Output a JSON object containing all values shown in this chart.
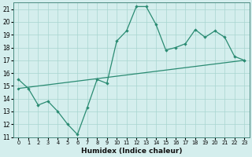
{
  "xlabel": "Humidex (Indice chaleur)",
  "xlim": [
    -0.5,
    23.5
  ],
  "ylim": [
    11,
    21.5
  ],
  "yticks": [
    11,
    12,
    13,
    14,
    15,
    16,
    17,
    18,
    19,
    20,
    21
  ],
  "xtick_positions": [
    0,
    1,
    2,
    3,
    4,
    5,
    6,
    7,
    8,
    9,
    10,
    11,
    12,
    13,
    14,
    15,
    16,
    17,
    18,
    19,
    20,
    21,
    22,
    23
  ],
  "xtick_labels": [
    "0",
    "1",
    "2",
    "3",
    "4",
    "5",
    "6",
    "7",
    "8",
    "9",
    "10",
    "11",
    "12",
    "13",
    "14",
    "15",
    "16",
    "17",
    "18",
    "19",
    "20",
    "21",
    "22",
    "23"
  ],
  "zigzag_x": [
    0,
    1,
    2,
    3,
    4,
    5,
    6,
    7,
    8,
    9,
    10,
    11,
    12,
    13,
    14,
    15,
    16,
    17,
    18,
    19,
    20,
    21,
    22,
    23
  ],
  "zigzag_y": [
    15.5,
    14.8,
    13.5,
    13.8,
    13.0,
    12.0,
    11.2,
    13.3,
    15.5,
    15.2,
    18.5,
    19.3,
    21.2,
    21.2,
    19.8,
    17.8,
    18.0,
    18.3,
    19.4,
    18.8,
    19.3,
    18.8,
    17.3,
    17.0
  ],
  "trend_x": [
    0,
    23
  ],
  "trend_y": [
    14.8,
    17.0
  ],
  "line_color": "#2a8b72",
  "bg_color": "#d4eeed",
  "grid_color": "#a8d5d0"
}
